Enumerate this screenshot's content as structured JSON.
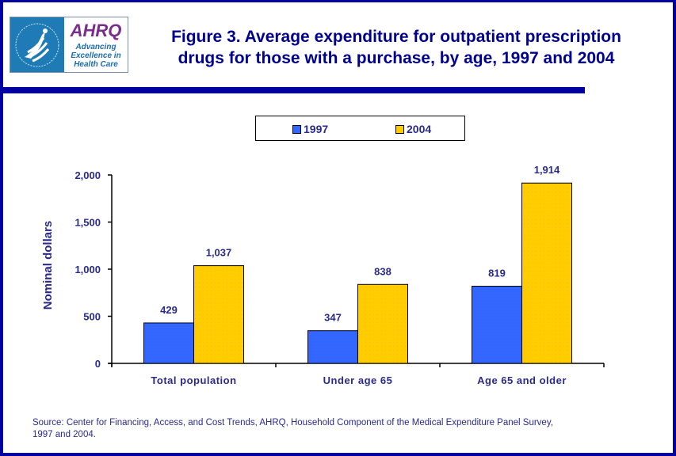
{
  "header": {
    "title_line1": "Figure 3. Average expenditure for outpatient prescription",
    "title_line2": "drugs for those with a purchase, by age, 1997 and 2004",
    "logo": {
      "hhs_icon": "hhs-eagle-seal-icon",
      "ahrq_wordmark": "AHRQ",
      "tagline_line1": "Advancing",
      "tagline_line2": "Excellence in",
      "tagline_line3": "Health Care"
    }
  },
  "colors": {
    "frame": "#0000A0",
    "series_1997": "#3366FF",
    "series_2004": "#FFCC00",
    "text": "#2A2A8A"
  },
  "chart_data": {
    "type": "bar",
    "title": "Figure 3. Average expenditure for outpatient prescription drugs for those with a purchase, by age, 1997 and 2004",
    "xlabel": "",
    "ylabel": "Nominal dollars",
    "categories": [
      "Total population",
      "Under age 65",
      "Age 65 and older"
    ],
    "series": [
      {
        "name": "1997",
        "values": [
          429,
          347,
          819
        ],
        "labels": [
          "429",
          "347",
          "819"
        ]
      },
      {
        "name": "2004",
        "values": [
          1037,
          838,
          1914
        ],
        "labels": [
          "1,037",
          "838",
          "1,914"
        ]
      }
    ],
    "ylim": [
      0,
      2000
    ],
    "yticks": [
      0,
      500,
      1000,
      1500,
      2000
    ],
    "ytick_labels": [
      "0",
      "500",
      "1,000",
      "1,500",
      "2,000"
    ],
    "grid": false,
    "legend": "top-center"
  },
  "legend": {
    "items": [
      {
        "label": "1997"
      },
      {
        "label": "2004"
      }
    ]
  },
  "footer": {
    "source_line1": "Source: Center for Financing, Access, and Cost Trends, AHRQ, Household Component of the Medical Expenditure Panel Survey,",
    "source_line2": "1997 and 2004."
  }
}
